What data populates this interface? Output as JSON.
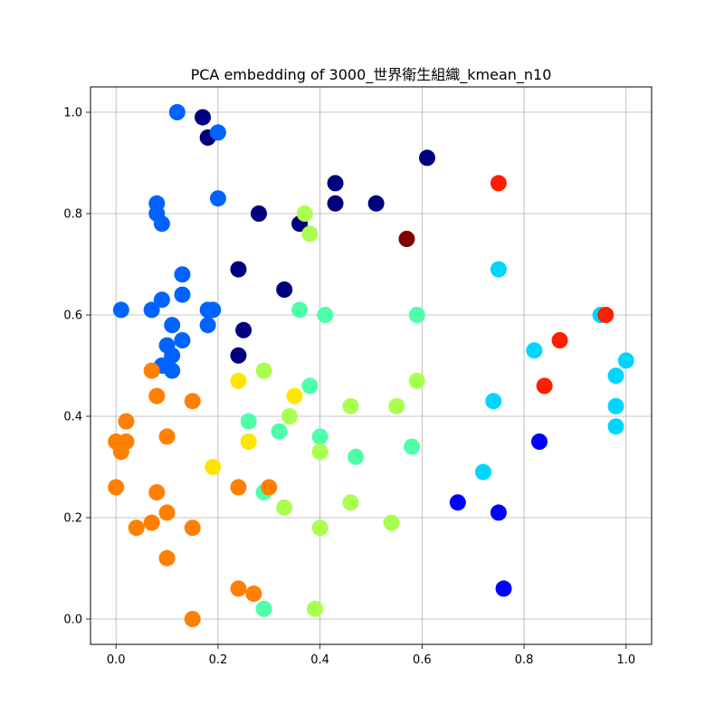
{
  "chart_data": {
    "type": "scatter",
    "title": "PCA embedding of 3000_世界衛生組織_kmean_n10",
    "xlabel": "",
    "ylabel": "",
    "xlim": [
      -0.05,
      1.05
    ],
    "ylim": [
      -0.05,
      1.05
    ],
    "grid": true,
    "x_ticks": [
      "0.0",
      "0.2",
      "0.4",
      "0.6",
      "0.8",
      "1.0"
    ],
    "y_ticks": [
      "0.0",
      "0.2",
      "0.4",
      "0.6",
      "0.8",
      "1.0"
    ],
    "colors": {
      "0": "#00007f",
      "1": "#0000ff",
      "2": "#0063ff",
      "3": "#00d5ff",
      "4": "#4effa9",
      "5": "#a9ff4e",
      "6": "#ffe500",
      "7": "#ff7f00",
      "8": "#ff1e00",
      "9": "#7f0000"
    },
    "points": [
      {
        "x": 0.17,
        "y": 0.99,
        "c": 0
      },
      {
        "x": 0.18,
        "y": 0.95,
        "c": 0
      },
      {
        "x": 0.61,
        "y": 0.91,
        "c": 0
      },
      {
        "x": 0.43,
        "y": 0.86,
        "c": 0
      },
      {
        "x": 0.43,
        "y": 0.82,
        "c": 0
      },
      {
        "x": 0.51,
        "y": 0.82,
        "c": 0
      },
      {
        "x": 0.28,
        "y": 0.8,
        "c": 0
      },
      {
        "x": 0.36,
        "y": 0.78,
        "c": 0
      },
      {
        "x": 0.24,
        "y": 0.69,
        "c": 0
      },
      {
        "x": 0.33,
        "y": 0.65,
        "c": 0
      },
      {
        "x": 0.25,
        "y": 0.57,
        "c": 0
      },
      {
        "x": 0.24,
        "y": 0.52,
        "c": 0
      },
      {
        "x": 0.83,
        "y": 0.35,
        "c": 1
      },
      {
        "x": 0.67,
        "y": 0.23,
        "c": 1
      },
      {
        "x": 0.75,
        "y": 0.21,
        "c": 1
      },
      {
        "x": 0.76,
        "y": 0.06,
        "c": 1
      },
      {
        "x": 0.12,
        "y": 1.0,
        "c": 2
      },
      {
        "x": 0.2,
        "y": 0.96,
        "c": 2
      },
      {
        "x": 0.2,
        "y": 0.83,
        "c": 2
      },
      {
        "x": 0.08,
        "y": 0.82,
        "c": 2
      },
      {
        "x": 0.08,
        "y": 0.8,
        "c": 2
      },
      {
        "x": 0.09,
        "y": 0.78,
        "c": 2
      },
      {
        "x": 0.13,
        "y": 0.68,
        "c": 2
      },
      {
        "x": 0.09,
        "y": 0.63,
        "c": 2
      },
      {
        "x": 0.13,
        "y": 0.64,
        "c": 2
      },
      {
        "x": 0.01,
        "y": 0.61,
        "c": 2
      },
      {
        "x": 0.07,
        "y": 0.61,
        "c": 2
      },
      {
        "x": 0.18,
        "y": 0.61,
        "c": 2
      },
      {
        "x": 0.19,
        "y": 0.61,
        "c": 2
      },
      {
        "x": 0.11,
        "y": 0.58,
        "c": 2
      },
      {
        "x": 0.18,
        "y": 0.58,
        "c": 2
      },
      {
        "x": 0.13,
        "y": 0.55,
        "c": 2
      },
      {
        "x": 0.1,
        "y": 0.54,
        "c": 2
      },
      {
        "x": 0.11,
        "y": 0.52,
        "c": 2
      },
      {
        "x": 0.09,
        "y": 0.5,
        "c": 2
      },
      {
        "x": 0.11,
        "y": 0.49,
        "c": 2
      },
      {
        "x": 0.75,
        "y": 0.69,
        "c": 3
      },
      {
        "x": 0.95,
        "y": 0.6,
        "c": 3
      },
      {
        "x": 0.82,
        "y": 0.53,
        "c": 3
      },
      {
        "x": 1.0,
        "y": 0.51,
        "c": 3
      },
      {
        "x": 0.98,
        "y": 0.48,
        "c": 3
      },
      {
        "x": 0.74,
        "y": 0.43,
        "c": 3
      },
      {
        "x": 0.98,
        "y": 0.42,
        "c": 3
      },
      {
        "x": 0.98,
        "y": 0.38,
        "c": 3
      },
      {
        "x": 0.72,
        "y": 0.29,
        "c": 3
      },
      {
        "x": 0.36,
        "y": 0.61,
        "c": 4
      },
      {
        "x": 0.41,
        "y": 0.6,
        "c": 4
      },
      {
        "x": 0.59,
        "y": 0.6,
        "c": 4
      },
      {
        "x": 0.38,
        "y": 0.46,
        "c": 4
      },
      {
        "x": 0.26,
        "y": 0.39,
        "c": 4
      },
      {
        "x": 0.32,
        "y": 0.37,
        "c": 4
      },
      {
        "x": 0.4,
        "y": 0.36,
        "c": 4
      },
      {
        "x": 0.58,
        "y": 0.34,
        "c": 4
      },
      {
        "x": 0.47,
        "y": 0.32,
        "c": 4
      },
      {
        "x": 0.29,
        "y": 0.25,
        "c": 4
      },
      {
        "x": 0.29,
        "y": 0.02,
        "c": 4
      },
      {
        "x": 0.37,
        "y": 0.8,
        "c": 5
      },
      {
        "x": 0.38,
        "y": 0.76,
        "c": 5
      },
      {
        "x": 0.29,
        "y": 0.49,
        "c": 5
      },
      {
        "x": 0.59,
        "y": 0.47,
        "c": 5
      },
      {
        "x": 0.46,
        "y": 0.42,
        "c": 5
      },
      {
        "x": 0.55,
        "y": 0.42,
        "c": 5
      },
      {
        "x": 0.34,
        "y": 0.4,
        "c": 5
      },
      {
        "x": 0.4,
        "y": 0.33,
        "c": 5
      },
      {
        "x": 0.33,
        "y": 0.22,
        "c": 5
      },
      {
        "x": 0.46,
        "y": 0.23,
        "c": 5
      },
      {
        "x": 0.54,
        "y": 0.19,
        "c": 5
      },
      {
        "x": 0.4,
        "y": 0.18,
        "c": 5
      },
      {
        "x": 0.39,
        "y": 0.02,
        "c": 5
      },
      {
        "x": 0.24,
        "y": 0.47,
        "c": 6
      },
      {
        "x": 0.35,
        "y": 0.44,
        "c": 6
      },
      {
        "x": 0.26,
        "y": 0.35,
        "c": 6
      },
      {
        "x": 0.19,
        "y": 0.3,
        "c": 6
      },
      {
        "x": 0.07,
        "y": 0.49,
        "c": 7
      },
      {
        "x": 0.08,
        "y": 0.44,
        "c": 7
      },
      {
        "x": 0.15,
        "y": 0.43,
        "c": 7
      },
      {
        "x": 0.02,
        "y": 0.39,
        "c": 7
      },
      {
        "x": 0.1,
        "y": 0.36,
        "c": 7
      },
      {
        "x": 0.0,
        "y": 0.35,
        "c": 7
      },
      {
        "x": 0.02,
        "y": 0.35,
        "c": 7
      },
      {
        "x": 0.01,
        "y": 0.33,
        "c": 7
      },
      {
        "x": 0.0,
        "y": 0.26,
        "c": 7
      },
      {
        "x": 0.08,
        "y": 0.25,
        "c": 7
      },
      {
        "x": 0.24,
        "y": 0.26,
        "c": 7
      },
      {
        "x": 0.3,
        "y": 0.26,
        "c": 7
      },
      {
        "x": 0.1,
        "y": 0.21,
        "c": 7
      },
      {
        "x": 0.07,
        "y": 0.19,
        "c": 7
      },
      {
        "x": 0.04,
        "y": 0.18,
        "c": 7
      },
      {
        "x": 0.15,
        "y": 0.18,
        "c": 7
      },
      {
        "x": 0.1,
        "y": 0.12,
        "c": 7
      },
      {
        "x": 0.24,
        "y": 0.06,
        "c": 7
      },
      {
        "x": 0.27,
        "y": 0.05,
        "c": 7
      },
      {
        "x": 0.15,
        "y": 0.0,
        "c": 7
      },
      {
        "x": 0.75,
        "y": 0.86,
        "c": 8
      },
      {
        "x": 0.96,
        "y": 0.6,
        "c": 8
      },
      {
        "x": 0.87,
        "y": 0.55,
        "c": 8
      },
      {
        "x": 0.84,
        "y": 0.46,
        "c": 8
      },
      {
        "x": 0.57,
        "y": 0.75,
        "c": 9
      }
    ]
  }
}
